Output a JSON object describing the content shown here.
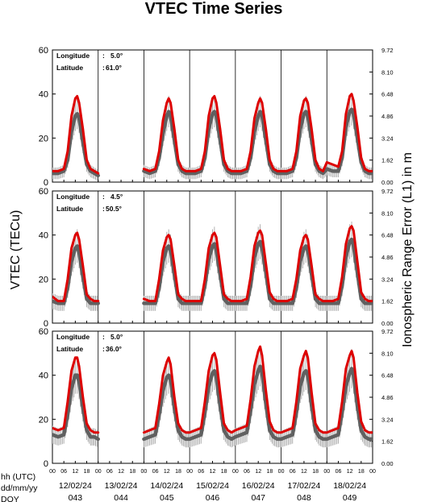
{
  "chart_data": {
    "type": "line",
    "title": "VTEC Time Series",
    "ylabel": "VTEC (TECu)",
    "ylabel_right": "Ionospheric Range Error (L1) in m",
    "ylim": [
      0,
      60
    ],
    "yticks": [
      "0",
      "20",
      "40",
      "60"
    ],
    "right_ticks": [
      "0.00",
      "1.62",
      "3.24",
      "4.86",
      "6.48",
      "8.10",
      "9.72"
    ],
    "hour_ticks": [
      "00",
      "06",
      "12",
      "18"
    ],
    "row_labels": [
      "hh (UTC)",
      "dd/mm/yy",
      "DOY"
    ],
    "days": [
      {
        "date": "12/02/24",
        "doy": "043"
      },
      {
        "date": "13/02/24",
        "doy": "044"
      },
      {
        "date": "14/02/24",
        "doy": "045"
      },
      {
        "date": "15/02/24",
        "doy": "046"
      },
      {
        "date": "16/02/24",
        "doy": "047"
      },
      {
        "date": "17/02/24",
        "doy": "048"
      },
      {
        "date": "18/02/24",
        "doy": "049"
      }
    ],
    "panels": [
      {
        "longitude_label": "Longitude",
        "longitude": "5.0°",
        "latitude_label": "Latitude",
        "latitude": "61.0°",
        "series": [
          {
            "color": "#dd0000",
            "x": [
              0,
              3,
              6,
              8,
              10,
              12,
              13,
              14,
              16,
              18,
              20,
              22,
              24,
              48,
              51,
              54,
              56,
              58,
              60,
              61,
              62,
              64,
              66,
              68,
              70,
              72,
              75,
              78,
              80,
              82,
              84,
              85,
              86,
              88,
              90,
              92,
              94,
              96,
              99,
              102,
              104,
              106,
              108,
              109,
              110,
              112,
              114,
              116,
              118,
              120,
              123,
              126,
              128,
              130,
              132,
              133,
              134,
              136,
              138,
              140,
              142,
              144,
              147,
              150,
              152,
              154,
              156,
              157,
              158,
              160,
              162,
              164,
              166,
              168
            ],
            "y": [
              5,
              5,
              6,
              14,
              30,
              38,
              39,
              36,
              24,
              10,
              6,
              5,
              4,
              6,
              5,
              6,
              14,
              28,
              36,
              38,
              36,
              24,
              10,
              6,
              5,
              5,
              5,
              6,
              14,
              30,
              38,
              39,
              36,
              24,
              10,
              6,
              5,
              5,
              5,
              6,
              14,
              29,
              36,
              38,
              36,
              24,
              10,
              6,
              5,
              5,
              5,
              6,
              14,
              30,
              37,
              38,
              36,
              24,
              10,
              6,
              5,
              9,
              8,
              7,
              14,
              31,
              39,
              40,
              37,
              25,
              11,
              6,
              5,
              5
            ]
          },
          {
            "color": "#606060",
            "x": [
              0,
              3,
              6,
              8,
              10,
              12,
              13,
              14,
              16,
              18,
              20,
              22,
              24,
              48,
              51,
              54,
              56,
              58,
              60,
              61,
              62,
              64,
              66,
              68,
              70,
              72,
              75,
              78,
              80,
              82,
              84,
              85,
              86,
              88,
              90,
              92,
              94,
              96,
              99,
              102,
              104,
              106,
              108,
              109,
              110,
              112,
              114,
              116,
              118,
              120,
              123,
              126,
              128,
              130,
              132,
              133,
              134,
              136,
              138,
              140,
              142,
              144,
              147,
              150,
              152,
              154,
              156,
              157,
              158,
              160,
              162,
              164,
              166,
              168
            ],
            "y": [
              4,
              4,
              5,
              10,
              23,
              30,
              31,
              29,
              18,
              8,
              5,
              4,
              3,
              5,
              4,
              5,
              11,
              22,
              30,
              32,
              30,
              19,
              8,
              5,
              4,
              4,
              4,
              5,
              11,
              24,
              31,
              32,
              30,
              19,
              8,
              5,
              4,
              4,
              4,
              5,
              11,
              23,
              30,
              32,
              30,
              19,
              8,
              5,
              4,
              4,
              4,
              5,
              11,
              24,
              31,
              32,
              30,
              19,
              8,
              5,
              4,
              6,
              5,
              5,
              11,
              25,
              32,
              33,
              31,
              20,
              9,
              5,
              4,
              4
            ]
          }
        ]
      },
      {
        "longitude_label": "Longitude",
        "longitude": "4.5°",
        "latitude_label": "Latitude",
        "latitude": "50.5°",
        "series": [
          {
            "color": "#dd0000",
            "x": [
              0,
              3,
              6,
              8,
              10,
              12,
              13,
              14,
              16,
              18,
              20,
              22,
              24,
              48,
              51,
              54,
              56,
              58,
              60,
              61,
              62,
              64,
              66,
              68,
              70,
              72,
              75,
              78,
              80,
              82,
              84,
              85,
              86,
              88,
              90,
              92,
              94,
              96,
              99,
              102,
              104,
              106,
              108,
              109,
              110,
              112,
              114,
              116,
              118,
              120,
              123,
              126,
              128,
              130,
              132,
              133,
              134,
              136,
              138,
              140,
              142,
              144,
              147,
              150,
              152,
              154,
              156,
              157,
              158,
              160,
              162,
              164,
              166,
              168
            ],
            "y": [
              12,
              10,
              10,
              20,
              34,
              40,
              41,
              38,
              26,
              13,
              11,
              10,
              10,
              11,
              10,
              10,
              20,
              33,
              39,
              40,
              38,
              26,
              13,
              11,
              10,
              10,
              10,
              10,
              20,
              34,
              40,
              41,
              39,
              26,
              13,
              11,
              10,
              10,
              10,
              11,
              21,
              35,
              41,
              42,
              40,
              27,
              14,
              11,
              10,
              10,
              10,
              11,
              20,
              33,
              39,
              40,
              38,
              26,
              13,
              11,
              10,
              10,
              10,
              11,
              21,
              36,
              43,
              44,
              42,
              28,
              14,
              11,
              10,
              10
            ]
          },
          {
            "color": "#606060",
            "x": [
              0,
              3,
              6,
              8,
              10,
              12,
              13,
              14,
              16,
              18,
              20,
              22,
              24,
              48,
              51,
              54,
              56,
              58,
              60,
              61,
              62,
              64,
              66,
              68,
              70,
              72,
              75,
              78,
              80,
              82,
              84,
              85,
              86,
              88,
              90,
              92,
              94,
              96,
              99,
              102,
              104,
              106,
              108,
              109,
              110,
              112,
              114,
              116,
              118,
              120,
              123,
              126,
              128,
              130,
              132,
              133,
              134,
              136,
              138,
              140,
              142,
              144,
              147,
              150,
              152,
              154,
              156,
              157,
              158,
              160,
              162,
              164,
              166,
              168
            ],
            "y": [
              10,
              9,
              9,
              16,
              28,
              34,
              35,
              32,
              21,
              11,
              9,
              9,
              9,
              9,
              9,
              9,
              16,
              28,
              34,
              35,
              33,
              22,
              11,
              9,
              9,
              9,
              9,
              9,
              17,
              29,
              35,
              36,
              33,
              22,
              11,
              9,
              9,
              9,
              9,
              9,
              17,
              30,
              36,
              37,
              34,
              23,
              11,
              9,
              9,
              9,
              9,
              9,
              16,
              28,
              34,
              35,
              33,
              22,
              11,
              9,
              9,
              9,
              9,
              9,
              17,
              30,
              37,
              38,
              35,
              23,
              11,
              9,
              9,
              9
            ]
          }
        ]
      },
      {
        "longitude_label": "Longitude",
        "longitude": "5.0°",
        "latitude_label": "Latitude",
        "latitude": "36.0°",
        "series": [
          {
            "color": "#dd0000",
            "x": [
              0,
              3,
              6,
              8,
              10,
              12,
              13,
              14,
              16,
              18,
              20,
              22,
              24,
              48,
              51,
              54,
              56,
              58,
              60,
              61,
              62,
              64,
              66,
              68,
              70,
              72,
              75,
              78,
              80,
              82,
              84,
              85,
              86,
              88,
              90,
              92,
              94,
              96,
              99,
              102,
              104,
              106,
              108,
              109,
              110,
              112,
              114,
              116,
              118,
              120,
              123,
              126,
              128,
              130,
              132,
              133,
              134,
              136,
              138,
              140,
              142,
              144,
              147,
              150,
              152,
              154,
              156,
              157,
              158,
              160,
              162,
              164,
              166,
              168
            ],
            "y": [
              16,
              15,
              16,
              28,
              42,
              48,
              48,
              44,
              30,
              18,
              15,
              14,
              14,
              14,
              15,
              16,
              27,
              40,
              46,
              48,
              45,
              30,
              18,
              15,
              14,
              14,
              15,
              16,
              28,
              42,
              49,
              50,
              47,
              32,
              18,
              15,
              14,
              15,
              16,
              17,
              29,
              44,
              51,
              53,
              49,
              33,
              19,
              15,
              14,
              14,
              15,
              16,
              28,
              43,
              49,
              51,
              48,
              32,
              18,
              15,
              14,
              14,
              15,
              16,
              28,
              43,
              49,
              51,
              48,
              32,
              19,
              15,
              14,
              14
            ]
          },
          {
            "color": "#606060",
            "x": [
              0,
              3,
              6,
              8,
              10,
              12,
              13,
              14,
              16,
              18,
              20,
              22,
              24,
              48,
              51,
              54,
              56,
              58,
              60,
              61,
              62,
              64,
              66,
              68,
              70,
              72,
              75,
              78,
              80,
              82,
              84,
              85,
              86,
              88,
              90,
              92,
              94,
              96,
              99,
              102,
              104,
              106,
              108,
              109,
              110,
              112,
              114,
              116,
              118,
              120,
              123,
              126,
              128,
              130,
              132,
              133,
              134,
              136,
              138,
              140,
              142,
              144,
              147,
              150,
              152,
              154,
              156,
              157,
              158,
              160,
              162,
              164,
              166,
              168
            ],
            "y": [
              13,
              12,
              13,
              22,
              34,
              40,
              40,
              37,
              25,
              15,
              12,
              12,
              11,
              11,
              12,
              13,
              22,
              33,
              39,
              40,
              38,
              25,
              15,
              12,
              11,
              11,
              12,
              13,
              23,
              35,
              41,
              42,
              39,
              26,
              15,
              12,
              11,
              12,
              13,
              14,
              24,
              36,
              42,
              44,
              41,
              27,
              15,
              12,
              11,
              11,
              12,
              13,
              23,
              35,
              41,
              42,
              40,
              26,
              15,
              12,
              11,
              11,
              12,
              13,
              23,
              35,
              41,
              43,
              40,
              26,
              15,
              12,
              11,
              11
            ]
          }
        ]
      }
    ]
  }
}
